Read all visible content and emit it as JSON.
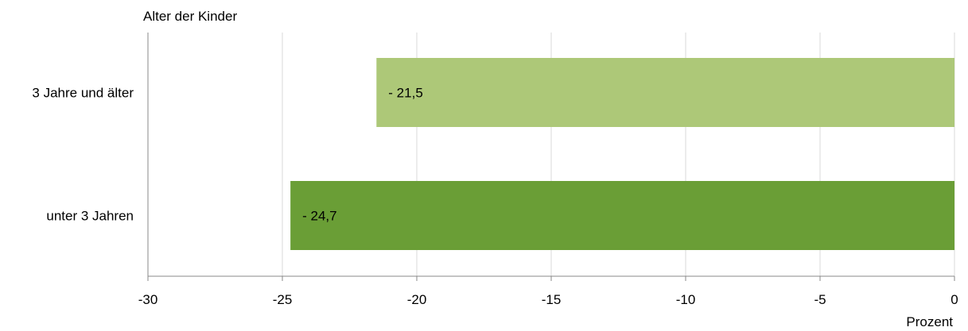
{
  "chart_data": {
    "type": "bar",
    "orientation": "horizontal",
    "categories": [
      "3 Jahre und älter",
      "unter 3 Jahren"
    ],
    "values": [
      -21.5,
      -24.7
    ],
    "data_labels": [
      "- 21,5",
      "- 24,7"
    ],
    "colors": [
      "#adc878",
      "#6a9e36"
    ],
    "title": "",
    "category_axis_title": "Alter der Kinder",
    "value_axis_title": "Prozent",
    "xlim": [
      -30,
      0
    ],
    "xticks": [
      -30,
      -25,
      -20,
      -15,
      -10,
      -5,
      0
    ],
    "xtick_labels": [
      "-30",
      "-25",
      "-20",
      "-15",
      "-10",
      "-5",
      "0"
    ],
    "grid": true,
    "legend": "none"
  }
}
